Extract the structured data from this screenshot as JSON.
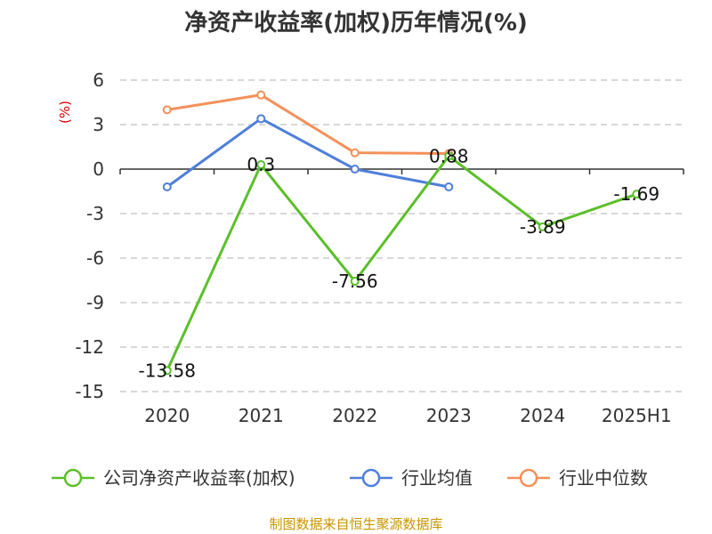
{
  "chart_data": {
    "type": "line",
    "title": "净资产收益率(加权)历年情况(%)",
    "ylabel": "(%)",
    "xlabel": "",
    "categories": [
      "2020",
      "2021",
      "2022",
      "2023",
      "2024",
      "2025H1"
    ],
    "ylim": [
      -15,
      6
    ],
    "yticks": [
      6,
      3,
      0,
      -3,
      -6,
      -9,
      -12,
      -15
    ],
    "grid": true,
    "legend_position": "bottom",
    "series": [
      {
        "name": "公司净资产收益率(加权)",
        "color": "#5cbf2a",
        "values": [
          -13.58,
          0.3,
          -7.56,
          0.88,
          -3.89,
          -1.69
        ],
        "labels": [
          "-13.58",
          "0.3",
          "-7.56",
          "0.88",
          "-3.89",
          "-1.69"
        ]
      },
      {
        "name": "行业均值",
        "color": "#4f7fd9",
        "values": [
          -1.2,
          3.4,
          0.0,
          -1.2,
          null,
          null
        ]
      },
      {
        "name": "行业中位数",
        "color": "#f39059",
        "values": [
          4.0,
          5.0,
          1.1,
          1.05,
          null,
          null
        ]
      }
    ],
    "source": "制图数据来自恒生聚源数据库"
  }
}
